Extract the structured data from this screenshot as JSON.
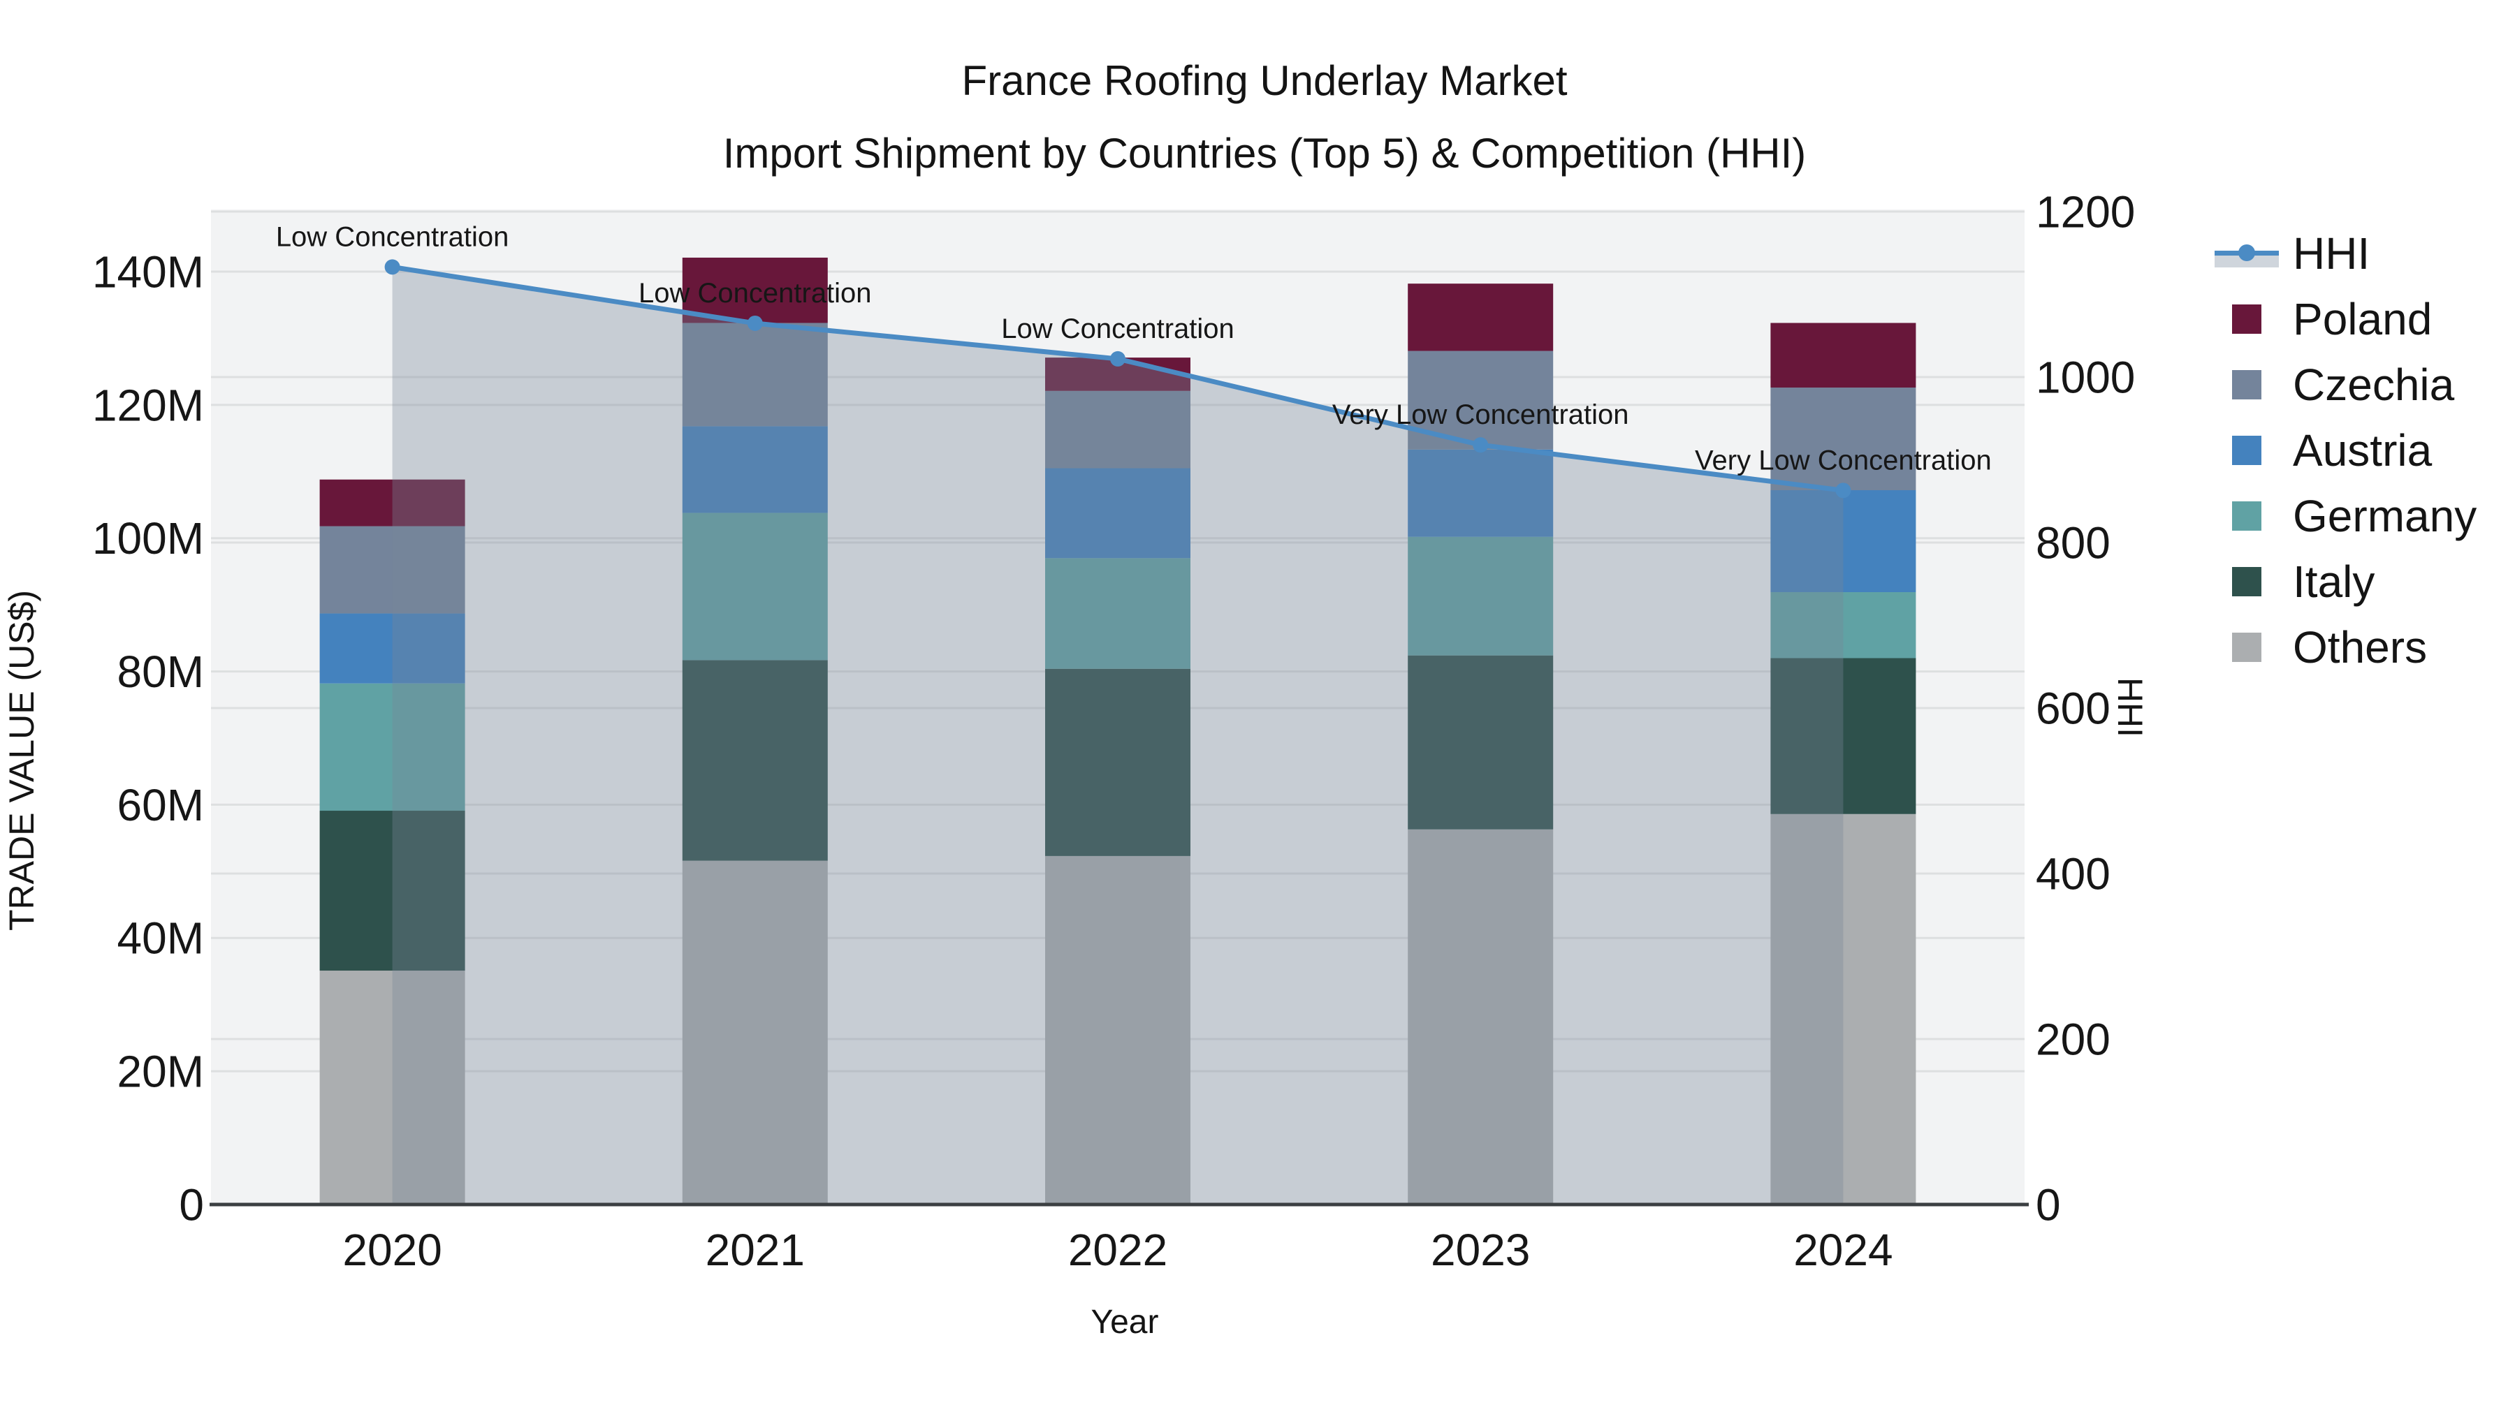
{
  "title": {
    "line1": "France Roofing Underlay Market",
    "line2": "Import Shipment by Countries (Top 5) & Competition (HHI)"
  },
  "x_axis": {
    "title": "Year",
    "ticks": [
      "2020",
      "2021",
      "2022",
      "2023",
      "2024"
    ]
  },
  "y_left_axis": {
    "title": "TRADE VALUE (US$)",
    "ticks": [
      "0",
      "20M",
      "40M",
      "60M",
      "80M",
      "100M",
      "120M",
      "140M"
    ],
    "tick_step_millions": 20
  },
  "y_right_axis": {
    "title": "HHI",
    "ticks": [
      "0",
      "200",
      "400",
      "600",
      "800",
      "1000",
      "1200"
    ],
    "tick_step": 200
  },
  "legend": {
    "items": [
      {
        "label": "HHI",
        "glyph": "line-marker-band",
        "color": "#4B8BC4",
        "band_color": "#CFD5DC"
      },
      {
        "label": "Poland",
        "glyph": "swatch",
        "color": "#68173A"
      },
      {
        "label": "Czechia",
        "glyph": "swatch",
        "color": "#74849B"
      },
      {
        "label": "Austria",
        "glyph": "swatch",
        "color": "#4482BE"
      },
      {
        "label": "Germany",
        "glyph": "swatch",
        "color": "#60A2A4"
      },
      {
        "label": "Italy",
        "glyph": "swatch",
        "color": "#2E514C"
      },
      {
        "label": "Others",
        "glyph": "swatch",
        "color": "#ABAEB0"
      }
    ]
  },
  "chart_data": {
    "type": "stacked-bar+line",
    "categories": [
      "2020",
      "2021",
      "2022",
      "2023",
      "2024"
    ],
    "bar_value_unit": "US$ millions",
    "series": [
      {
        "name": "Others",
        "color": "#ABAEB0",
        "values": [
          35.1,
          51.6,
          52.3,
          56.3,
          58.6
        ]
      },
      {
        "name": "Italy",
        "color": "#2E514C",
        "values": [
          24.0,
          30.1,
          28.1,
          26.1,
          23.4
        ]
      },
      {
        "name": "Germany",
        "color": "#60A2A4",
        "values": [
          19.1,
          22.1,
          16.6,
          17.8,
          9.9
        ]
      },
      {
        "name": "Austria",
        "color": "#4482BE",
        "values": [
          10.5,
          13.0,
          13.5,
          13.1,
          15.3
        ]
      },
      {
        "name": "Czechia",
        "color": "#74849B",
        "values": [
          13.1,
          15.5,
          11.6,
          14.8,
          15.4
        ]
      },
      {
        "name": "Poland",
        "color": "#68173A",
        "values": [
          7.0,
          9.8,
          5.0,
          10.1,
          9.7
        ]
      }
    ],
    "bar_totals_millions": [
      108.8,
      142.1,
      127.1,
      138.2,
      132.3
    ],
    "line_series": {
      "name": "HHI",
      "axis": "right",
      "color": "#4B8BC4",
      "area_fill": "rgba(119,136,153,0.35)",
      "values": [
        1133,
        1065,
        1022,
        918,
        863
      ]
    },
    "annotations": [
      {
        "category": "2020",
        "text": "Low Concentration"
      },
      {
        "category": "2021",
        "text": "Low Concentration"
      },
      {
        "category": "2022",
        "text": "Low Concentration"
      },
      {
        "category": "2023",
        "text": "Very Low Concentration"
      },
      {
        "category": "2024",
        "text": "Very Low Concentration"
      }
    ],
    "ylim_left_millions": [
      0,
      149.3
    ],
    "ylim_right": [
      0,
      1200
    ],
    "grid": true,
    "legend_position": "right",
    "plot_background": "#F2F3F4",
    "gridline_color": "#DDDFE0"
  }
}
